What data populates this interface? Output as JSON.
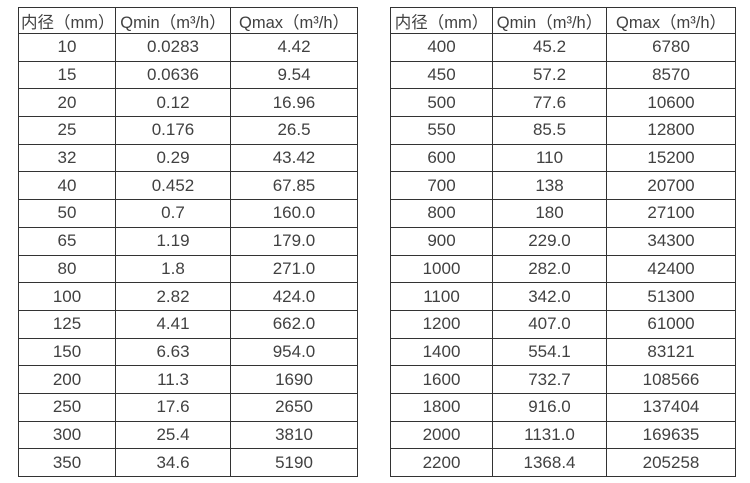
{
  "page": {
    "background_color": "#ffffff",
    "text_color": "#414141",
    "border_color": "#333333"
  },
  "tables": [
    {
      "name": "diameter-flow-table-small",
      "headers": [
        "内径（mm）",
        "Qmin（m³/h）",
        "Qmax（m³/h）"
      ],
      "rows": [
        [
          "10",
          "0.0283",
          "4.42"
        ],
        [
          "15",
          "0.0636",
          "9.54"
        ],
        [
          "20",
          "0.12",
          "16.96"
        ],
        [
          "25",
          "0.176",
          "26.5"
        ],
        [
          "32",
          "0.29",
          "43.42"
        ],
        [
          "40",
          "0.452",
          "67.85"
        ],
        [
          "50",
          "0.7",
          "160.0"
        ],
        [
          "65",
          "1.19",
          "179.0"
        ],
        [
          "80",
          "1.8",
          "271.0"
        ],
        [
          "100",
          "2.82",
          "424.0"
        ],
        [
          "125",
          "4.41",
          "662.0"
        ],
        [
          "150",
          "6.63",
          "954.0"
        ],
        [
          "200",
          "11.3",
          "1690"
        ],
        [
          "250",
          "17.6",
          "2650"
        ],
        [
          "300",
          "25.4",
          "3810"
        ],
        [
          "350",
          "34.6",
          "5190"
        ]
      ]
    },
    {
      "name": "diameter-flow-table-large",
      "headers": [
        "内径（mm）",
        "Qmin（m³/h）",
        "Qmax（m³/h）"
      ],
      "rows": [
        [
          "400",
          "45.2",
          "6780"
        ],
        [
          "450",
          "57.2",
          "8570"
        ],
        [
          "500",
          "77.6",
          "10600"
        ],
        [
          "550",
          "85.5",
          "12800"
        ],
        [
          "600",
          "110",
          "15200"
        ],
        [
          "700",
          "138",
          "20700"
        ],
        [
          "800",
          "180",
          "27100"
        ],
        [
          "900",
          "229.0",
          "34300"
        ],
        [
          "1000",
          "282.0",
          "42400"
        ],
        [
          "1100",
          "342.0",
          "51300"
        ],
        [
          "1200",
          "407.0",
          "61000"
        ],
        [
          "1400",
          "554.1",
          "83121"
        ],
        [
          "1600",
          "732.7",
          "108566"
        ],
        [
          "1800",
          "916.0",
          "137404"
        ],
        [
          "2000",
          "1131.0",
          "169635"
        ],
        [
          "2200",
          "1368.4",
          "205258"
        ]
      ]
    }
  ]
}
